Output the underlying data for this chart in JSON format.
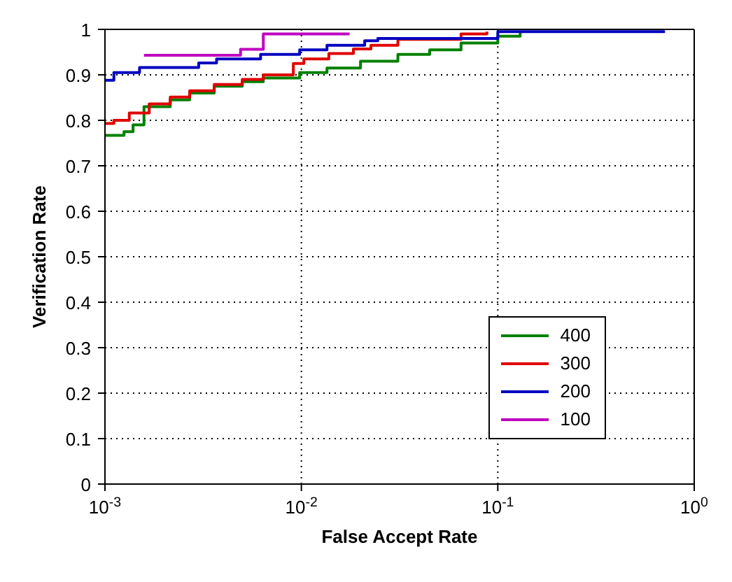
{
  "chart_data": {
    "type": "step",
    "xlabel": "False Accept Rate",
    "ylabel": "Verification Rate",
    "log": "x",
    "xlim": [
      0.001,
      1
    ],
    "xticks": [
      {
        "value": 0.001,
        "label": "10$^{-3}$"
      },
      {
        "value": 0.01,
        "label": "10$^{-2}$"
      },
      {
        "value": 0.1,
        "label": "10$^{-1}$"
      },
      {
        "value": 1,
        "label": "10$^{0}$"
      }
    ],
    "ylim": [
      0,
      1
    ],
    "yticks": [
      0,
      0.1,
      0.2,
      0.3,
      0.4,
      0.5,
      0.6,
      0.7,
      0.8,
      0.9,
      1
    ],
    "grid": true,
    "legend": "right",
    "line_style": "solid",
    "marker": "none",
    "series": [
      {
        "name": "400",
        "color": "#008000",
        "x": [
          0.001,
          0.00125,
          0.00139,
          0.00158,
          0.00215,
          0.0027,
          0.0036,
          0.005,
          0.0064,
          0.0098,
          0.0135,
          0.02,
          0.031,
          0.045,
          0.065,
          0.1,
          0.13
        ],
        "values": [
          0.767,
          0.775,
          0.79,
          0.83,
          0.845,
          0.86,
          0.875,
          0.885,
          0.893,
          0.905,
          0.915,
          0.93,
          0.945,
          0.955,
          0.97,
          0.985,
          0.995
        ]
      },
      {
        "name": "300",
        "color": "#e00000",
        "x": [
          0.001,
          0.00111,
          0.00133,
          0.00168,
          0.00215,
          0.0027,
          0.0036,
          0.005,
          0.0064,
          0.0091,
          0.0103,
          0.0138,
          0.0184,
          0.0226,
          0.031,
          0.065,
          0.088
        ],
        "values": [
          0.793,
          0.8,
          0.816,
          0.836,
          0.851,
          0.865,
          0.879,
          0.89,
          0.9,
          0.925,
          0.935,
          0.947,
          0.957,
          0.965,
          0.978,
          0.99,
          0.995
        ]
      },
      {
        "name": "200",
        "color": "#0000c0",
        "x": [
          0.001,
          0.00111,
          0.0015,
          0.003,
          0.0037,
          0.0062,
          0.0098,
          0.0135,
          0.021,
          0.0245,
          0.1,
          0.71
        ],
        "values": [
          0.888,
          0.905,
          0.916,
          0.926,
          0.935,
          0.945,
          0.955,
          0.965,
          0.975,
          0.98,
          0.995,
          0.995
        ]
      },
      {
        "name": "100",
        "color": "#c000c0",
        "x": [
          0.00158,
          0.0049,
          0.0064,
          0.0176
        ],
        "values": [
          0.943,
          0.956,
          0.99,
          0.99
        ]
      }
    ]
  }
}
